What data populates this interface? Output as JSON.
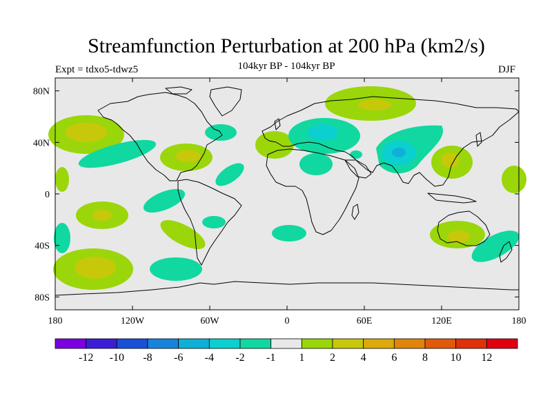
{
  "title": "Streamfunction Perturbation at 200 hPa (km2/s)",
  "subtitle": "104kyr BP - 104kyr BP",
  "experiment": "Expt = tdxo5-tdwz5",
  "season": "DJF",
  "map": {
    "ocean_color": "#e8e8e8",
    "coast_color": "#000000",
    "lon_ticks": [
      {
        "value": -180,
        "label": "180"
      },
      {
        "value": -120,
        "label": "120W"
      },
      {
        "value": -60,
        "label": "60W"
      },
      {
        "value": 0,
        "label": "0"
      },
      {
        "value": 60,
        "label": "60E"
      },
      {
        "value": 120,
        "label": "120E"
      },
      {
        "value": 180,
        "label": "180"
      }
    ],
    "lat_ticks": [
      {
        "value": 80,
        "label": "80N"
      },
      {
        "value": 40,
        "label": "40N"
      },
      {
        "value": 0,
        "label": "0"
      },
      {
        "value": -40,
        "label": "40S"
      },
      {
        "value": -80,
        "label": "80S"
      }
    ]
  },
  "colorbar": {
    "colors": [
      "#7a00e0",
      "#3a1ed6",
      "#1a50d8",
      "#1684dc",
      "#0fb0d8",
      "#0ccfcf",
      "#10d8a0",
      "#e8e8e8",
      "#9ad60a",
      "#c8c80a",
      "#dcaa0a",
      "#e0840a",
      "#e05a0a",
      "#e0300a",
      "#e00010"
    ],
    "labels": [
      "-12",
      "-10",
      "-8",
      "-6",
      "-4",
      "-2",
      "-1",
      "1",
      "2",
      "4",
      "6",
      "8",
      "10",
      "12"
    ]
  }
}
